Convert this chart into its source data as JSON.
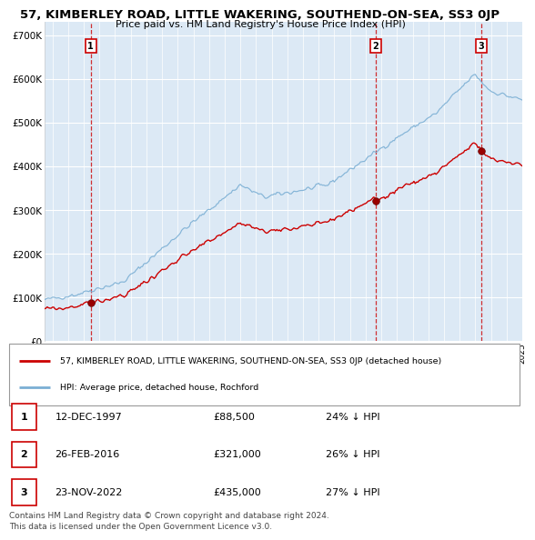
{
  "title": "57, KIMBERLEY ROAD, LITTLE WAKERING, SOUTHEND-ON-SEA, SS3 0JP",
  "subtitle": "Price paid vs. HM Land Registry's House Price Index (HPI)",
  "sale_points": [
    {
      "label": "1",
      "date_num": 1997.95,
      "price": 88500
    },
    {
      "label": "2",
      "date_num": 2016.15,
      "price": 321000
    },
    {
      "label": "3",
      "date_num": 2022.9,
      "price": 435000
    }
  ],
  "vline_dates": [
    1997.95,
    2016.15,
    2022.9
  ],
  "red_line_color": "#cc0000",
  "blue_line_color": "#7bafd4",
  "background_color": "#dce9f5",
  "legend_label_red": "57, KIMBERLEY ROAD, LITTLE WAKERING, SOUTHEND-ON-SEA, SS3 0JP (detached house)",
  "legend_label_blue": "HPI: Average price, detached house, Rochford",
  "table_rows": [
    [
      "1",
      "12-DEC-1997",
      "£88,500",
      "24% ↓ HPI"
    ],
    [
      "2",
      "26-FEB-2016",
      "£321,000",
      "26% ↓ HPI"
    ],
    [
      "3",
      "23-NOV-2022",
      "£435,000",
      "27% ↓ HPI"
    ]
  ],
  "footer": "Contains HM Land Registry data © Crown copyright and database right 2024.\nThis data is licensed under the Open Government Licence v3.0.",
  "ylabel_ticks": [
    0,
    100000,
    200000,
    300000,
    400000,
    500000,
    600000,
    700000
  ],
  "ylabel_labels": [
    "£0",
    "£100K",
    "£200K",
    "£300K",
    "£400K",
    "£500K",
    "£600K",
    "£700K"
  ],
  "xmin": 1995.0,
  "xmax": 2025.5,
  "ymin": 0,
  "ymax": 730000
}
